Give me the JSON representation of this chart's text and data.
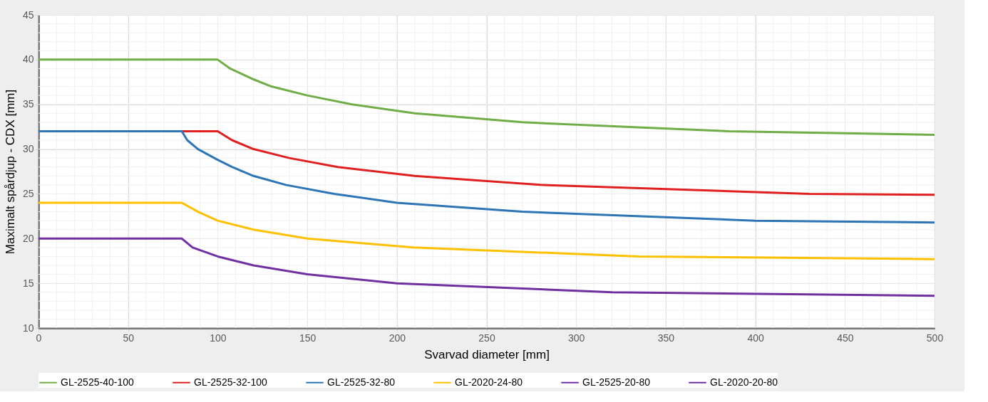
{
  "chart_data": {
    "type": "line",
    "xlabel": "Svarvad diameter [mm]",
    "ylabel": "Maximalt spårdjup - CDX [mm]",
    "xlim": [
      0,
      500
    ],
    "xticks": [
      0,
      50,
      100,
      150,
      200,
      250,
      300,
      350,
      400,
      450,
      500
    ],
    "ylim": [
      10,
      45
    ],
    "yticks": [
      10,
      15,
      20,
      25,
      30,
      35,
      40,
      45
    ],
    "grid": true,
    "legend": "bottom",
    "marker": "none",
    "line_style": "solid",
    "series": [
      {
        "name": "GL-2525-40-100",
        "color": "#70ad47",
        "x": [
          0,
          100,
          107,
          120,
          130,
          150,
          175,
          210,
          270,
          385,
          500
        ],
        "values": [
          40,
          40,
          39,
          37.8,
          37,
          36,
          35,
          34,
          33,
          32,
          31.6
        ]
      },
      {
        "name": "GL-2525-32-100",
        "color": "#e02020",
        "x": [
          0,
          100,
          108,
          120,
          140,
          167,
          210,
          280,
          430,
          500
        ],
        "values": [
          32,
          32,
          31,
          30,
          29,
          28,
          27,
          26,
          25,
          24.9
        ]
      },
      {
        "name": "GL-2525-32-80",
        "color": "#2e75b6",
        "x": [
          0,
          80,
          83,
          89,
          100,
          108,
          120,
          138,
          165,
          200,
          270,
          400,
          500
        ],
        "values": [
          32,
          32,
          31,
          30,
          28.8,
          28,
          27,
          26,
          25,
          24,
          23,
          22,
          21.8
        ]
      },
      {
        "name": "GL-2020-24-80",
        "color": "#ffc000",
        "x": [
          0,
          80,
          89,
          100,
          120,
          150,
          209,
          335,
          500
        ],
        "values": [
          24,
          24,
          23,
          22,
          21,
          20,
          19,
          18,
          17.7
        ]
      },
      {
        "name": "GL-2525-20-80",
        "color": "#7030a0"
      },
      {
        "name": "GL-2020-20-80",
        "color": "#7030a0",
        "x": [
          0,
          80,
          86,
          100,
          120,
          150,
          200,
          320,
          500
        ],
        "values": [
          20,
          20,
          19,
          18,
          17,
          16,
          15,
          14,
          13.6
        ]
      }
    ]
  }
}
